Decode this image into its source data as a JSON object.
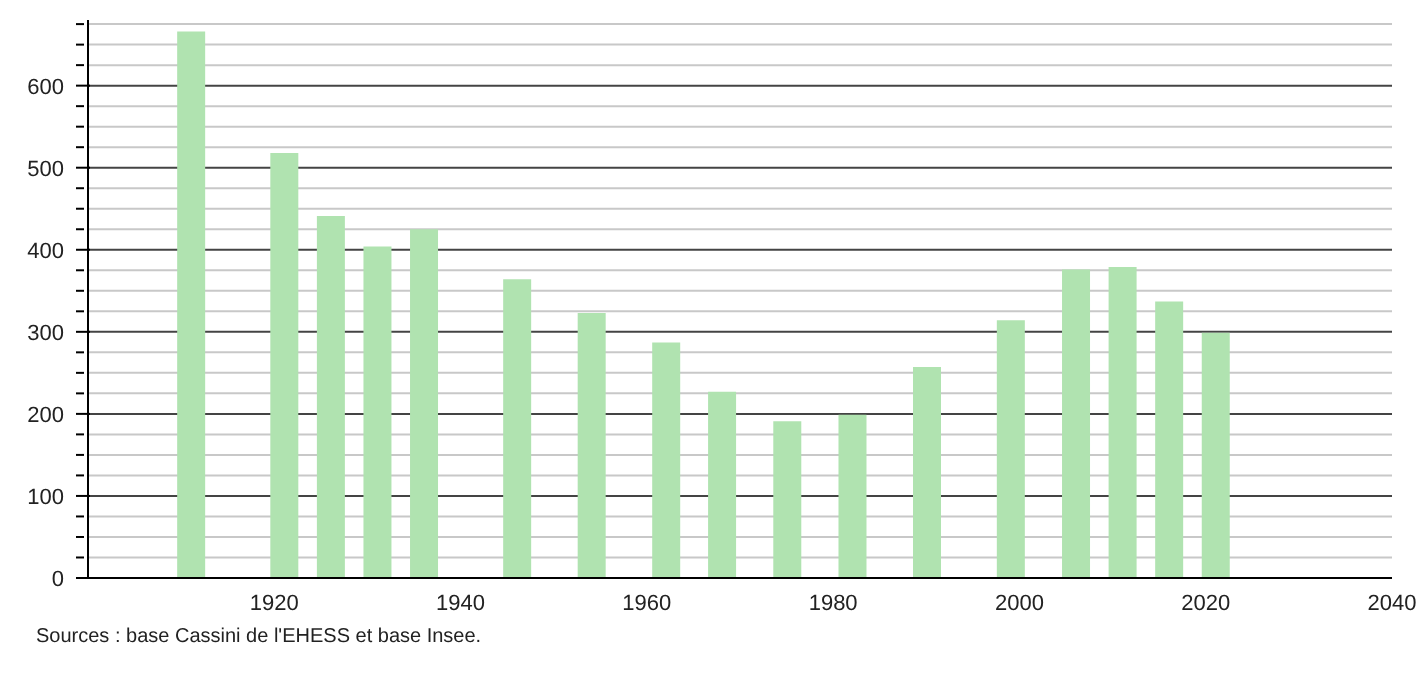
{
  "chart_data": {
    "type": "bar",
    "x": [
      1911,
      1921,
      1926,
      1931,
      1936,
      1946,
      1954,
      1962,
      1968,
      1975,
      1982,
      1990,
      1999,
      2006,
      2011,
      2016,
      2021
    ],
    "values": [
      666,
      518,
      441,
      404,
      425,
      364,
      323,
      287,
      227,
      191,
      199,
      257,
      314,
      376,
      379,
      337,
      299
    ],
    "color": "#b0e3b0",
    "xlim": [
      1900,
      2040
    ],
    "xticks": [
      1920,
      1940,
      1960,
      1980,
      2000,
      2020,
      2040
    ],
    "ylim": [
      0,
      680
    ],
    "yticks": [
      0,
      {
        "value": 25,
        "label": null
      },
      {
        "value": 50,
        "label": null
      },
      {
        "value": 75,
        "label": null
      },
      100,
      {
        "value": 125,
        "label": null
      },
      {
        "value": 150,
        "label": null
      },
      {
        "value": 175,
        "label": null
      },
      200,
      {
        "value": 225,
        "label": null
      },
      {
        "value": 250,
        "label": null
      },
      {
        "value": 275,
        "label": null
      },
      300,
      {
        "value": 325,
        "label": null
      },
      {
        "value": 350,
        "label": null
      },
      {
        "value": 375,
        "label": null
      },
      400,
      {
        "value": 425,
        "label": null
      },
      {
        "value": 450,
        "label": null
      },
      {
        "value": 475,
        "label": null
      },
      500,
      {
        "value": 525,
        "label": null
      },
      {
        "value": 550,
        "label": null
      },
      {
        "value": 575,
        "label": null
      },
      600,
      {
        "value": 625,
        "label": null
      },
      {
        "value": 650,
        "label": null
      },
      {
        "value": 675,
        "label": null
      }
    ],
    "grid": "y",
    "annotations": [
      "Sources : base Cassini de l'EHESS et base Insee."
    ]
  }
}
